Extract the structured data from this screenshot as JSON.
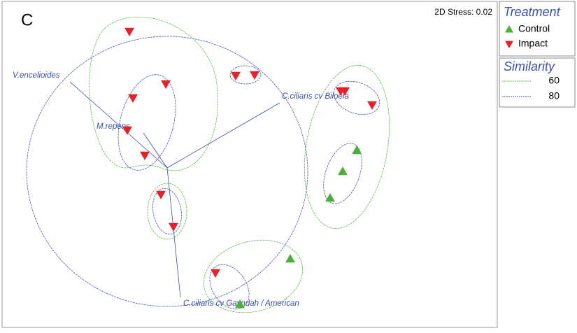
{
  "chart_data": {
    "type": "scatter",
    "panel_label": "C",
    "annotation": "2D Stress: 0.02",
    "xlim": [
      0,
      70.5
    ],
    "ylim": [
      0,
      46.5
    ],
    "legend_title": "Treatment",
    "series": [
      {
        "name": "Control",
        "color": "#4caf3c",
        "marker": "triangle-up",
        "x": [
          50.5,
          48.5,
          46.7,
          41.0,
          33.8
        ],
        "y": [
          25.0,
          22.0,
          18.2,
          9.5,
          3.0
        ]
      },
      {
        "name": "Impact",
        "color": "#e8202a",
        "marker": "triangle-down",
        "x": [
          18.0,
          23.2,
          18.5,
          17.7,
          20.2,
          33.2,
          35.9,
          22.5,
          24.3,
          30.3,
          48.2,
          48.8,
          52.7
        ],
        "y": [
          42.0,
          34.5,
          32.5,
          27.9,
          24.3,
          35.7,
          35.8,
          18.7,
          14.1,
          7.5,
          33.5,
          33.5,
          31.5
        ]
      }
    ],
    "vectors": [
      "V.encelioides",
      "M.repens",
      "C.ciliaris cv Biloela",
      "C.ciliaris cv Gayndah / American"
    ],
    "similarity": {
      "title": "Similarity",
      "levels": [
        60,
        80
      ]
    }
  }
}
